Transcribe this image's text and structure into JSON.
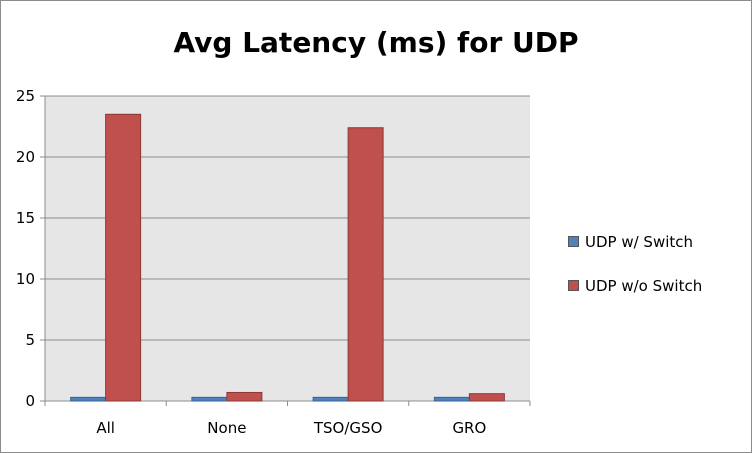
{
  "chart_data": {
    "type": "bar",
    "title": "Avg Latency (ms) for UDP",
    "xlabel": "",
    "ylabel": "",
    "categories": [
      "All",
      "None",
      "TSO/GSO",
      "GRO"
    ],
    "ylim": [
      0,
      25
    ],
    "yticks": [
      "0",
      "5",
      "10",
      "15",
      "20",
      "25"
    ],
    "grid": true,
    "legend_position": "right",
    "series": [
      {
        "name": "UDP w/ Switch",
        "color": "#4f81bd",
        "values": [
          0.3,
          0.3,
          0.3,
          0.3
        ]
      },
      {
        "name": "UDP w/o Switch",
        "color": "#c0504d",
        "values": [
          23.5,
          0.7,
          22.4,
          0.6
        ]
      }
    ]
  }
}
